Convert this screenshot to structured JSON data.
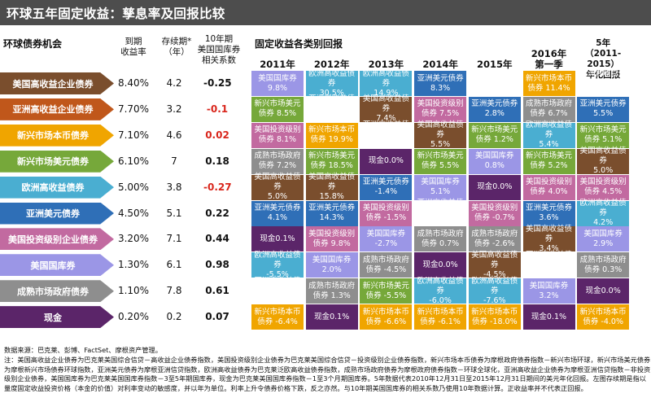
{
  "title": "环球五年固定收益：孳息率及回报比较",
  "left_section": "环球债券机会",
  "right_section": "固定收益各类别回报",
  "col_headers": {
    "yield": "到期\n收益率",
    "duration": "存续期*\n（年）",
    "corr": "10年期\n美国国库券\n相关系数"
  },
  "bonds": [
    {
      "name": "美国高收益企业债券",
      "yield": "8.40%",
      "duration": "4.2",
      "corr": "-0.25",
      "color": "#7a4e2d",
      "corr_color": "#111111"
    },
    {
      "name": "亚洲高收益企业债券",
      "yield": "7.70%",
      "duration": "3.2",
      "corr": "-0.1",
      "color": "#c0571b",
      "corr_color": "#d9261c"
    },
    {
      "name": "新兴市场本币债券",
      "yield": "7.10%",
      "duration": "4.6",
      "corr": "0.02",
      "color": "#f0a500",
      "corr_color": "#d9261c"
    },
    {
      "name": "新兴市场美元债券",
      "yield": "6.10%",
      "duration": "7",
      "corr": "0.18",
      "color": "#76a83a",
      "corr_color": "#111111"
    },
    {
      "name": "欧洲高收益债券",
      "yield": "5.00%",
      "duration": "3.8",
      "corr": "-0.27",
      "color": "#4aaed1",
      "corr_color": "#d9261c"
    },
    {
      "name": "亚洲美元债券",
      "yield": "4.50%",
      "duration": "5.1",
      "corr": "0.22",
      "color": "#2f6fb7",
      "corr_color": "#111111"
    },
    {
      "name": "美国投资级别企业债券",
      "yield": "3.20%",
      "duration": "7.1",
      "corr": "0.44",
      "color": "#c26aa0",
      "corr_color": "#111111"
    },
    {
      "name": "美国国库券",
      "yield": "1.30%",
      "duration": "6.1",
      "corr": "0.98",
      "color": "#9b96e6",
      "corr_color": "#111111"
    },
    {
      "name": "成熟市场政府债券",
      "yield": "1.10%",
      "duration": "7.8",
      "corr": "0.61",
      "color": "#8e8e8e",
      "corr_color": "#111111"
    },
    {
      "name": "现金",
      "yield": "0.20%",
      "duration": "0.2",
      "corr": "0.07",
      "color": "#5b2569",
      "corr_color": "#111111"
    }
  ],
  "year_headers": [
    "2011年",
    "2012年",
    "2013年",
    "2014年",
    "2015年",
    "2016年\n第一季",
    "5年\n（2011-2015）\n年化回报"
  ],
  "category_colors": {
    "美国高收益企业债券": "#7a4e2d",
    "亚洲高收益企业债券": "#c0571b",
    "新兴市场本币债券": "#f0a500",
    "新兴市场美元债券": "#76a83a",
    "欧洲高收益债券": "#4aaed1",
    "亚洲美元债券": "#2f6fb7",
    "美国投资级别企业债券": "#c26aa0",
    "美国国库券": "#9b96e6",
    "成熟市场政府债券": "#8e8e8e",
    "现金": "#5b2569"
  },
  "chart_data": {
    "type": "table",
    "columns": [
      "2011年",
      "2012年",
      "2013年",
      "2014年",
      "2015年",
      "2016年第一季",
      "5年（2011-2015）年化回报"
    ],
    "cells": [
      [
        {
          "cat": "美国国库券",
          "label": "美国国库券\n9.8%"
        },
        {
          "cat": "欧洲高收益债券",
          "label": "欧洲高收益债券\n30.5%"
        },
        {
          "cat": "欧洲高收益债券",
          "label": "欧洲高收益债券\n14.9%"
        },
        {
          "cat": "亚洲美元债券",
          "label": "亚洲美元债券\n8.3%"
        },
        {
          "cat": "亚洲高收益债券",
          "label": "亚洲高收益债券\n5.8%"
        },
        {
          "cat": "新兴市场本币债券",
          "label": "新兴市场本币债券 11.4%"
        },
        {
          "cat": "亚洲高收益债券",
          "label": "亚洲高收益债券\n6.6%"
        }
      ],
      [
        {
          "cat": "新兴市场美元债券",
          "label": "新兴市场美元债券 8.5%"
        },
        {
          "cat": "亚洲高收益债券",
          "label": "亚洲高收益债券\n25.4%"
        },
        {
          "cat": "美国高收益企业债券",
          "label": "美国高收益债券\n7.4%"
        },
        {
          "cat": "美国投资级别企业债券",
          "label": "美国投资级别债券 7.5%"
        },
        {
          "cat": "亚洲美元债券",
          "label": "亚洲美元债券\n2.8%"
        },
        {
          "cat": "成熟市场政府债券",
          "label": "成熟市场政府债券 6.7%"
        },
        {
          "cat": "亚洲美元债券",
          "label": "亚洲美元债券\n5.5%"
        }
      ],
      [
        {
          "cat": "美国投资级别企业债券",
          "label": "美国投资级别债券 8.1%"
        },
        {
          "cat": "新兴市场本币债券",
          "label": "新兴市场本币债券 19.9%"
        },
        {
          "cat": "亚洲高收益债券",
          "label": "亚洲高收益债券\n4.3%"
        },
        {
          "cat": "美国高收益企业债券",
          "label": "美国高收益债券\n5.5%"
        },
        {
          "cat": "新兴市场美元债券",
          "label": "新兴市场美元债券 1.2%"
        },
        {
          "cat": "欧洲高收益债券",
          "label": "欧洲高收益债券\n5.4%"
        },
        {
          "cat": "新兴市场美元债券",
          "label": "新兴市场美元债券 5.1%"
        }
      ],
      [
        {
          "cat": "成熟市场政府债券",
          "label": "成熟市场政府债券 7.2%"
        },
        {
          "cat": "新兴市场美元债券",
          "label": "新兴市场美元债券 18.5%"
        },
        {
          "cat": "现金",
          "label": "现金0.0%"
        },
        {
          "cat": "新兴市场美元债券",
          "label": "新兴市场美元债券 5.5%"
        },
        {
          "cat": "美国国库券",
          "label": "美国国库券\n0.8%"
        },
        {
          "cat": "新兴市场美元债券",
          "label": "新兴市场美元债券 5.2%"
        },
        {
          "cat": "美国高收益企业债券",
          "label": "美国高收益债券\n5.0%"
        }
      ],
      [
        {
          "cat": "美国高收益企业债券",
          "label": "美国高收益债券\n5.0%"
        },
        {
          "cat": "美国高收益企业债券",
          "label": "美国高收益债券\n15.8%"
        },
        {
          "cat": "亚洲美元债券",
          "label": "亚洲美元债券\n-1.4%"
        },
        {
          "cat": "美国国库券",
          "label": "美国国库券5.1%"
        },
        {
          "cat": "现金",
          "label": "现金0.0%"
        },
        {
          "cat": "美国投资级别企业债券",
          "label": "美国投资级别债券 4.0%"
        },
        {
          "cat": "美国投资级别企业债券",
          "label": "美国投资级别债券 4.5%"
        }
      ],
      [
        {
          "cat": "亚洲美元债券",
          "label": "亚洲美元债券\n4.1%"
        },
        {
          "cat": "亚洲美元债券",
          "label": "亚洲美元债券\n14.3%"
        },
        {
          "cat": "美国投资级别企业债券",
          "label": "美国投资级别债券 -1.5%"
        },
        {
          "cat": "亚洲高收益债券",
          "label": "亚洲高收益债券\n2.5%"
        },
        {
          "cat": "美国投资级别企业债券",
          "label": "美国投资级别债券 -0.7%"
        },
        {
          "cat": "亚洲美元债券",
          "label": "亚洲美元债券\n3.6%"
        },
        {
          "cat": "欧洲高收益债券",
          "label": "欧洲高收益债券\n4.2%"
        }
      ],
      [
        {
          "cat": "现金",
          "label": "现金0.1%"
        },
        {
          "cat": "美国投资级别企业债券",
          "label": "美国投资级别债券 9.8%"
        },
        {
          "cat": "美国国库券",
          "label": "美国国库券\n-2.7%"
        },
        {
          "cat": "成熟市场政府债券",
          "label": "成熟市场政府债券 0.7%"
        },
        {
          "cat": "成熟市场政府债券",
          "label": "成熟市场政府债券 -2.6%"
        },
        {
          "cat": "美国高收益企业债券",
          "label": "美国高收益债券\n3.4%"
        },
        {
          "cat": "美国国库券",
          "label": "美国国库券\n2.9%"
        }
      ],
      [
        {
          "cat": "欧洲高收益债券",
          "label": "欧洲高收益债券\n-5.5%"
        },
        {
          "cat": "美国国库券",
          "label": "美国国库券\n2.0%"
        },
        {
          "cat": "成熟市场政府债券",
          "label": "成熟市场政府债券 -4.5%"
        },
        {
          "cat": "现金",
          "label": "现金0.0%"
        },
        {
          "cat": "美国高收益企业债券",
          "label": "美国高收益债券\n-4.5%"
        },
        {
          "cat": "亚洲高收益债券",
          "label": "亚洲高收益债券\n3.4%"
        },
        {
          "cat": "成熟市场政府债券",
          "label": "成熟市场政府债券 0.3%"
        }
      ],
      [
        {
          "cat": "亚洲高收益债券",
          "label": "亚洲高收益债券\n-5.9%"
        },
        {
          "cat": "成熟市场政府债券",
          "label": "成熟市场政府债券 1.3%"
        },
        {
          "cat": "新兴市场美元债券",
          "label": "新兴市场美元债券 -5.5%"
        },
        {
          "cat": "欧洲高收益债券",
          "label": "欧洲高收益债券\n-6.0%"
        },
        {
          "cat": "欧洲高收益债券",
          "label": "欧洲高收益债券\n-7.6%"
        },
        {
          "cat": "美国国库券",
          "label": "美国国库券\n3.2%"
        },
        {
          "cat": "现金",
          "label": "现金0.0%"
        }
      ],
      [
        {
          "cat": "新兴市场本币债券",
          "label": "新兴市场本币债券 -6.4%"
        },
        {
          "cat": "现金",
          "label": "现金0.1%"
        },
        {
          "cat": "新兴市场本币债券",
          "label": "新兴市场本币债券 -6.6%"
        },
        {
          "cat": "新兴市场本币债券",
          "label": "新兴市场本币债券 -6.1%"
        },
        {
          "cat": "新兴市场本币债券",
          "label": "新兴市场本币债券 -18.0%"
        },
        {
          "cat": "现金",
          "label": "现金0.1%"
        },
        {
          "cat": "新兴市场本币债券",
          "label": "新兴市场本币债券 -4.0%"
        }
      ]
    ]
  },
  "source": "数据来源：巴克莱、彭博、FactSet、摩根资产管理。",
  "notes": "注：美国高收益企业债券为巴克莱美国综合信贷－高收益企业债券指数，美国投资级别企业债券为巴克莱美国综合信贷－投资级别企业债券指数，新兴市场本币债券为摩根政府债券指数－新兴市场环球，新兴市场美元债券为摩根新兴市场债券环球指数，亚洲美元债券为摩根亚洲信贷指数，欧洲高收益债券为巴克莱泛欧高收益债券指数，成熟市场政府债券为摩根政府债券指数－环球全球化，亚洲高收益企业债券为摩根亚洲信贷指数－非投资级别企业债券，美国国库券为巴克莱美国国库券指数－3至5年期国库券，现金为巴克莱美国国库券指数－1至3个月期国库券。5年数据代表2010年12月31日至2015年12月31日期间的美元年化回报。左图存续期是指以量度固定收益投资价格（本金的价值）对利率变动的敏感度，并以年为单位。利率上升令债券价格下跌，反之亦然。与10年期美国国库券的相关系数乃使用10年数据计算。正收益率并不代表正回报。"
}
